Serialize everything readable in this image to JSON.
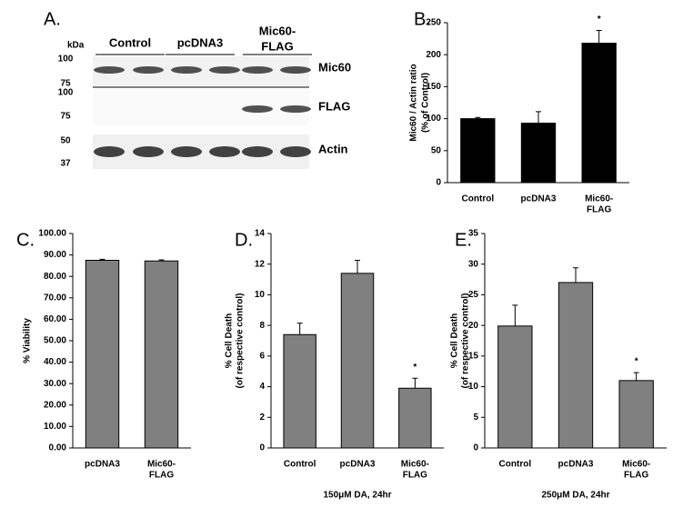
{
  "blot": {
    "label": "A.",
    "unit": "kDa",
    "groups": [
      "Control",
      "pcDNA3",
      [
        "Mic60-",
        "FLAG"
      ]
    ],
    "rows": [
      {
        "name": "Mic60",
        "markers": [
          100,
          75
        ]
      },
      {
        "name": "FLAG",
        "markers": [
          100,
          75
        ]
      },
      {
        "name": "Actin",
        "markers": [
          50,
          37
        ]
      }
    ]
  },
  "chart_data": [
    {
      "type": "bar",
      "panel": "B.",
      "ylabel": [
        "Mic60 / Actin ratio",
        "(% of Control)"
      ],
      "categories": [
        "Control",
        "pcDNA3",
        [
          "Mic60-",
          "FLAG"
        ]
      ],
      "values": [
        100,
        93,
        218
      ],
      "errors": [
        2,
        18,
        20
      ],
      "color": "#000000",
      "ylim": [
        0,
        250
      ],
      "yticks": [
        0,
        50,
        100,
        150,
        200,
        250
      ],
      "annotations": [
        {
          "index": 2,
          "text": "*"
        }
      ]
    },
    {
      "type": "bar",
      "panel": "C.",
      "ylabel": [
        "% Viability"
      ],
      "categories": [
        "pcDNA3",
        [
          "Mic60-",
          "FLAG"
        ]
      ],
      "values": [
        87.5,
        87.2
      ],
      "errors": [
        0.5,
        0.5
      ],
      "color": "#808080",
      "ylim": [
        0,
        100
      ],
      "yticks": [
        {
          "value": 0,
          "label": "0.00"
        },
        {
          "value": 10,
          "label": "10.00"
        },
        {
          "value": 20,
          "label": "20.00"
        },
        {
          "value": 30,
          "label": "30.00"
        },
        {
          "value": 40,
          "label": "40.00"
        },
        {
          "value": 50,
          "label": "50.00"
        },
        {
          "value": 60,
          "label": "60.00"
        },
        {
          "value": 70,
          "label": "70.00"
        },
        {
          "value": 80,
          "label": "80.00"
        },
        {
          "value": 90,
          "label": "90.00"
        },
        {
          "value": 100,
          "label": "100.00"
        }
      ]
    },
    {
      "type": "bar",
      "panel": "D.",
      "ylabel": [
        "% Cell Death",
        "(of respective control)"
      ],
      "categories": [
        "Control",
        "pcDNA3",
        [
          "Mic60-",
          "FLAG"
        ]
      ],
      "values": [
        7.4,
        11.4,
        3.9
      ],
      "errors": [
        0.75,
        0.85,
        0.65
      ],
      "color": "#808080",
      "ylim": [
        0,
        14
      ],
      "yticks": [
        0,
        2,
        4,
        6,
        8,
        10,
        12,
        14
      ],
      "xlabel": "150μM DA, 24hr",
      "annotations": [
        {
          "index": 2,
          "text": "*"
        }
      ]
    },
    {
      "type": "bar",
      "panel": "E.",
      "ylabel": [
        "% Cell Death",
        "(of respective control)"
      ],
      "categories": [
        "Control",
        "pcDNA3",
        [
          "Mic60-",
          "FLAG"
        ]
      ],
      "values": [
        19.9,
        27.0,
        11.0
      ],
      "errors": [
        3.4,
        2.4,
        1.3
      ],
      "color": "#808080",
      "ylim": [
        0,
        35
      ],
      "yticks": [
        0,
        5,
        10,
        15,
        20,
        25,
        30,
        35
      ],
      "xlabel": "250μM DA, 24hr",
      "annotations": [
        {
          "index": 2,
          "text": "*"
        }
      ]
    }
  ]
}
